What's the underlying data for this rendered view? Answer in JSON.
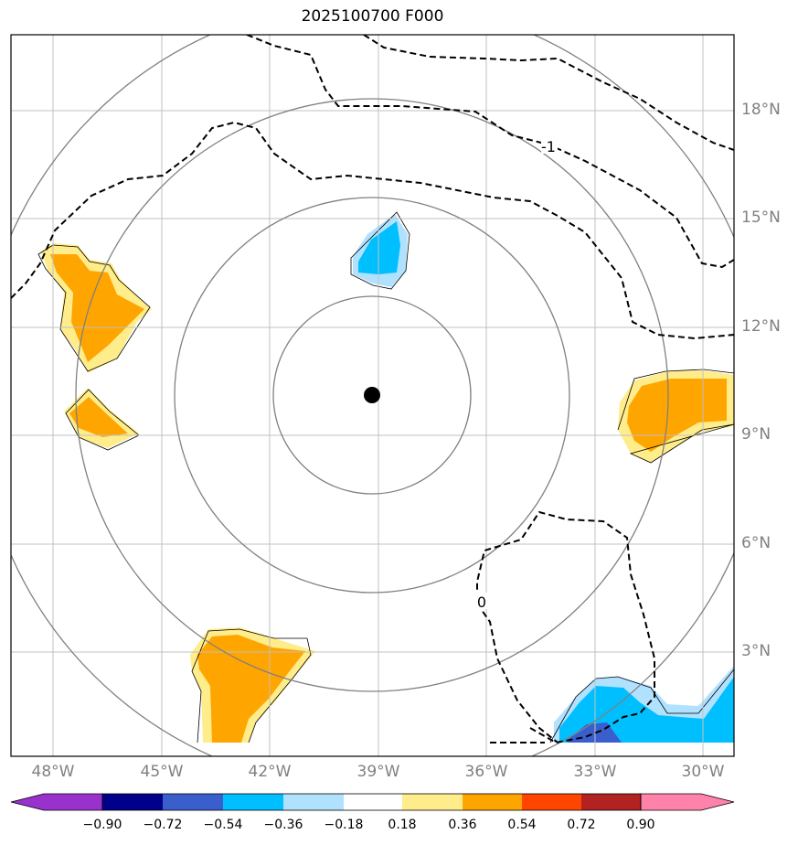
{
  "title": "2025100700 F000",
  "latitude_labels": [
    "18°N",
    "15°N",
    "12°N",
    "9°N",
    "6°N",
    "3°N"
  ],
  "longitude_labels": [
    "48°W",
    "45°W",
    "42°W",
    "39°W",
    "36°W",
    "33°W",
    "30°W"
  ],
  "contour_labels": [
    "-1",
    "0"
  ],
  "colorbar": {
    "tick_labels": [
      "−0.90",
      "−0.72",
      "−0.54",
      "−0.36",
      "−0.18",
      "0.18",
      "0.36",
      "0.54",
      "0.72",
      "0.90"
    ],
    "colors": [
      "#9932cc",
      "#00008b",
      "#3a5fcd",
      "#00bfff",
      "#b0e2ff",
      "#ffffff",
      "#ffec8b",
      "#ffa500",
      "#ff4500",
      "#b22222",
      "#ff82ab"
    ]
  },
  "fill_colors": {
    "light_yellow": "#ffec8b",
    "orange": "#ffa500",
    "light_blue": "#b0e2ff",
    "deep_sky_blue": "#00bfff",
    "royal_blue": "#3a5fcd"
  },
  "center_marker_color": "#000000"
}
